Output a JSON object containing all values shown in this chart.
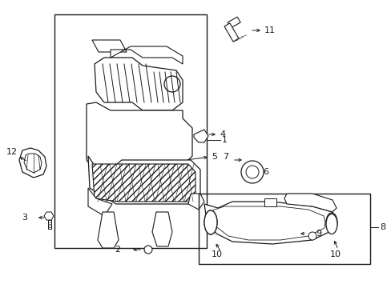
{
  "bg_color": "#ffffff",
  "line_color": "#1a1a1a",
  "fig_width": 4.89,
  "fig_height": 3.6,
  "dpi": 100,
  "lw": 0.8
}
